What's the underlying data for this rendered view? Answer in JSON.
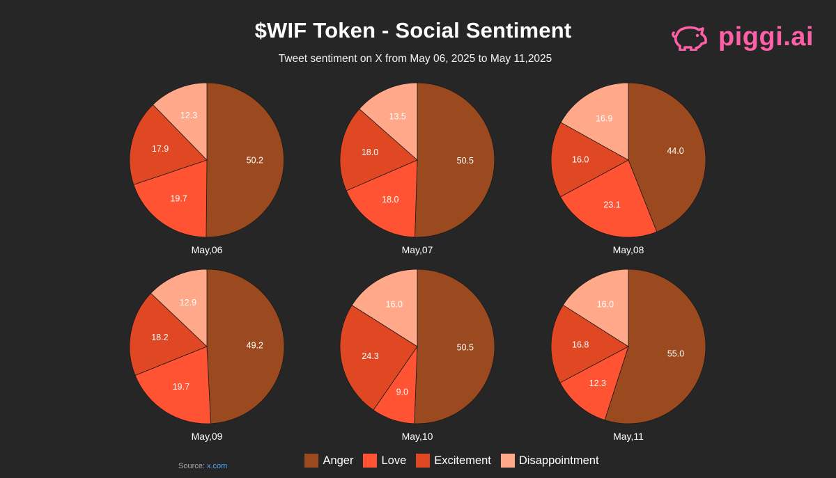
{
  "title": "$WIF Token - Social Sentiment",
  "subtitle": "Tweet sentiment on X from May 06, 2025 to May 11,2025",
  "brand": {
    "name": "piggi.ai",
    "icon": "pig-icon",
    "color": "#ff5fa6"
  },
  "source": {
    "label": "Source:",
    "link_text": "x.com"
  },
  "chart_data": {
    "type": "pie",
    "legend_position": "bottom",
    "categories": [
      "Anger",
      "Love",
      "Excitement",
      "Disappointment"
    ],
    "colors": [
      "#9b4a1f",
      "#ff5333",
      "#e04824",
      "#ffa98a"
    ],
    "charts": [
      {
        "label": "May,06",
        "values": [
          50.2,
          19.7,
          17.9,
          12.3
        ]
      },
      {
        "label": "May,07",
        "values": [
          50.5,
          18.0,
          18.0,
          13.5
        ]
      },
      {
        "label": "May,08",
        "values": [
          44.0,
          23.1,
          16.0,
          16.9
        ]
      },
      {
        "label": "May,09",
        "values": [
          49.2,
          19.7,
          18.2,
          12.9
        ]
      },
      {
        "label": "May,10",
        "values": [
          50.5,
          9.0,
          24.3,
          16.0
        ]
      },
      {
        "label": "May,11",
        "values": [
          55.0,
          12.3,
          16.8,
          16.0
        ]
      }
    ]
  }
}
